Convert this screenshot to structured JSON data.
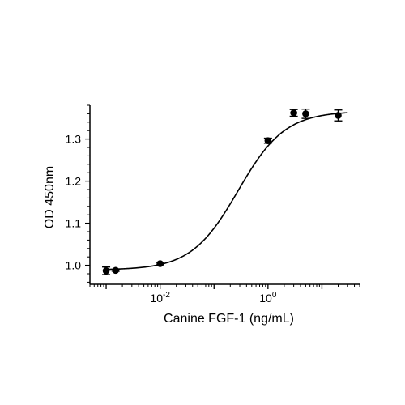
{
  "chart_data": {
    "type": "scatter",
    "title": "",
    "xlabel": "Canine FGF-1 (ng/mL)",
    "ylabel": "OD 450nm",
    "xscale": "log",
    "xlim": [
      0.0005,
      50
    ],
    "ylim": [
      0.955,
      1.38
    ],
    "xticks": [
      {
        "value": 0.01,
        "base": "10",
        "exp": "-2"
      },
      {
        "value": 1,
        "base": "10",
        "exp": "0"
      }
    ],
    "yticks": [
      {
        "value": 1.0,
        "label": "1.0"
      },
      {
        "value": 1.1,
        "label": "1.1"
      },
      {
        "value": 1.2,
        "label": "1.2"
      },
      {
        "value": 1.3,
        "label": "1.3"
      }
    ],
    "points": [
      {
        "x": 0.001,
        "y": 0.987,
        "err": 0.009
      },
      {
        "x": 0.0015,
        "y": 0.988,
        "err": 0.002
      },
      {
        "x": 0.01,
        "y": 1.004,
        "err": 0.003
      },
      {
        "x": 1.0,
        "y": 1.296,
        "err": 0.006
      },
      {
        "x": 3.0,
        "y": 1.362,
        "err": 0.008
      },
      {
        "x": 5.0,
        "y": 1.36,
        "err": 0.011
      },
      {
        "x": 20.0,
        "y": 1.356,
        "err": 0.013
      }
    ],
    "fit": {
      "model": "4PL",
      "bottom": 0.989,
      "top": 1.366,
      "ec50": 0.28,
      "hill": 1.0
    },
    "grid": false,
    "legend": "none",
    "color": "#000000"
  }
}
